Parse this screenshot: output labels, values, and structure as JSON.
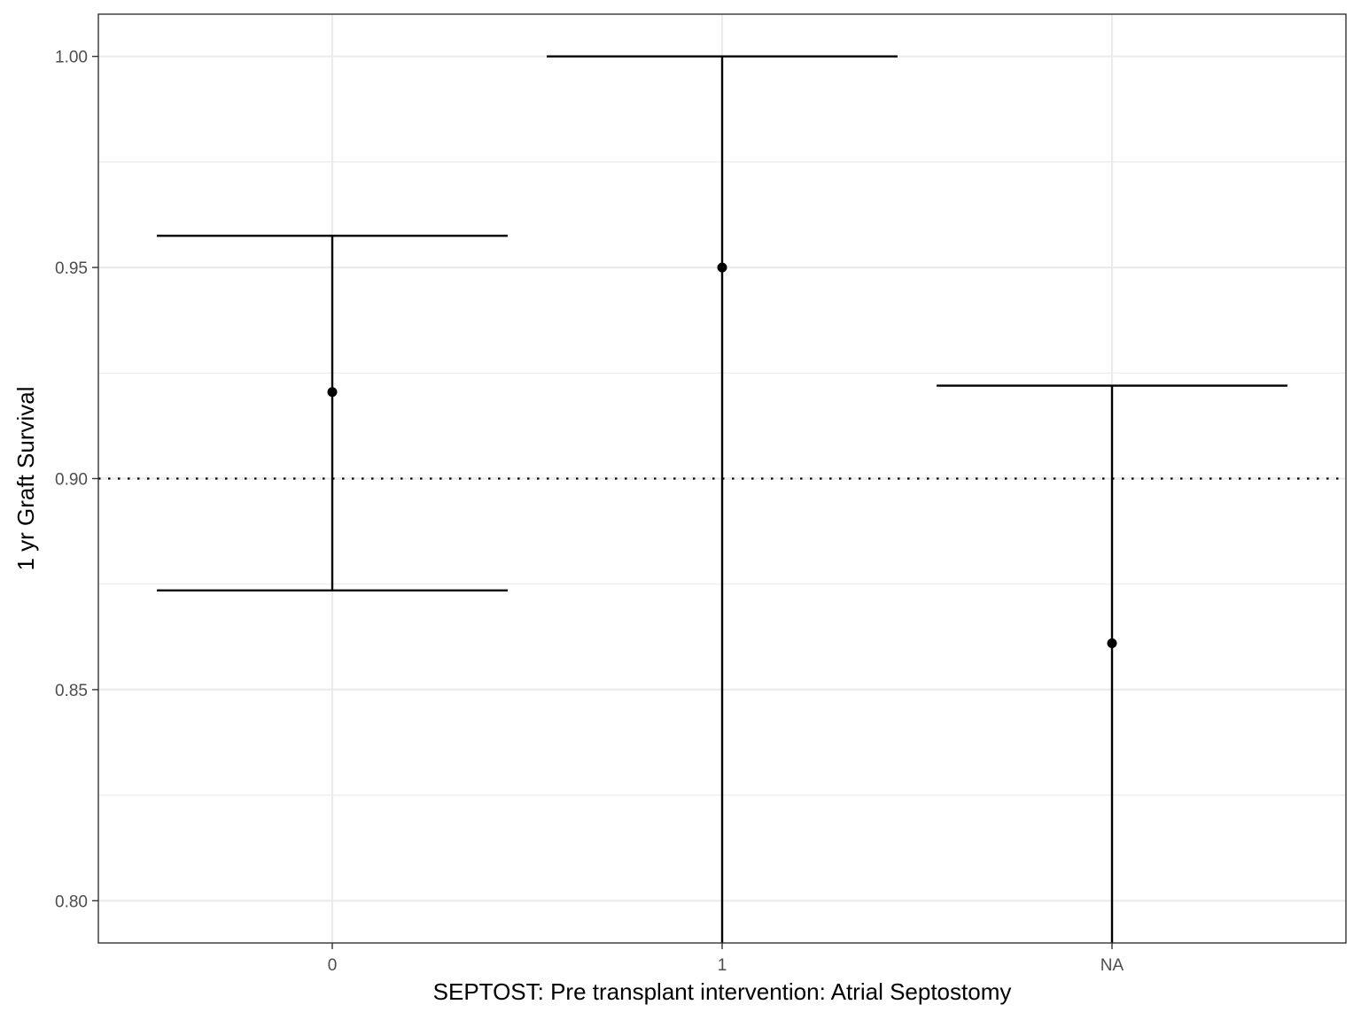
{
  "chart_data": {
    "type": "errorbar",
    "xlabel": "SEPTOST: Pre transplant intervention: Atrial Septostomy",
    "ylabel": "1 yr Graft Survival",
    "categories": [
      "0",
      "1",
      "NA"
    ],
    "points": [
      {
        "category": "0",
        "estimate": 0.9205,
        "lower": 0.8735,
        "upper": 0.9575
      },
      {
        "category": "1",
        "estimate": 0.95,
        "lower": 0.75,
        "upper": 1.0
      },
      {
        "category": "NA",
        "estimate": 0.861,
        "lower": 0.75,
        "upper": 0.922
      }
    ],
    "ylim": [
      0.79,
      1.01
    ],
    "yticks": [
      0.8,
      0.85,
      0.9,
      0.95,
      1.0
    ],
    "ytick_labels": [
      "0.80",
      "0.85",
      "0.90",
      "0.95",
      "1.00"
    ],
    "reference_line": {
      "y": 0.9,
      "style": "dotted"
    },
    "grid": true,
    "legend": "none",
    "colors": {
      "marks": "#000000",
      "grid": "#ebebeb",
      "panel_border": "#333333",
      "tick_text": "#4d4d4d"
    }
  }
}
